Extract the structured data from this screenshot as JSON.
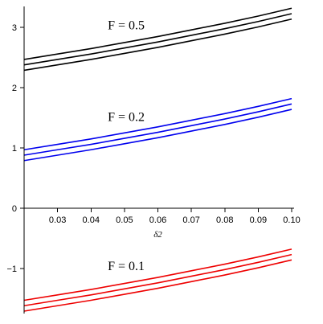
{
  "chart_data": {
    "type": "line",
    "xlabel": "δ2",
    "ylabel": "",
    "xlim": [
      0.02,
      0.1
    ],
    "ylim": [
      -1.75,
      3.35
    ],
    "x_ticks": [
      0.03,
      0.04,
      0.05,
      0.06,
      0.07,
      0.08,
      0.09,
      0.1
    ],
    "x_tick_labels": [
      "0.03",
      "0.04",
      "0.05",
      "0.06",
      "0.07",
      "0.08",
      "0.09",
      "0.10"
    ],
    "y_ticks": [
      -1,
      0,
      1,
      2,
      3
    ],
    "y_tick_labels": [
      "−1",
      "0",
      "1",
      "2",
      "3"
    ],
    "grid": false,
    "annotations": [
      {
        "text": "F = 0.5",
        "x": 0.045,
        "y": 2.97,
        "color": "#000000"
      },
      {
        "text": "F = 0.2",
        "x": 0.045,
        "y": 1.45,
        "color": "#000000"
      },
      {
        "text": "F = 0.1",
        "x": 0.045,
        "y": -1.03,
        "color": "#000000"
      }
    ],
    "series": [
      {
        "group": "F = 0.5",
        "color": "#000000",
        "x": [
          0.02,
          0.03,
          0.04,
          0.05,
          0.06,
          0.07,
          0.08,
          0.09,
          0.1
        ],
        "values": [
          2.47,
          2.56,
          2.65,
          2.75,
          2.85,
          2.96,
          3.07,
          3.19,
          3.32
        ]
      },
      {
        "group": "F = 0.5",
        "color": "#000000",
        "x": [
          0.02,
          0.03,
          0.04,
          0.05,
          0.06,
          0.07,
          0.08,
          0.09,
          0.1
        ],
        "values": [
          2.38,
          2.47,
          2.56,
          2.66,
          2.76,
          2.87,
          2.98,
          3.1,
          3.23
        ]
      },
      {
        "group": "F = 0.5",
        "color": "#000000",
        "x": [
          0.02,
          0.03,
          0.04,
          0.05,
          0.06,
          0.07,
          0.08,
          0.09,
          0.1
        ],
        "values": [
          2.29,
          2.38,
          2.47,
          2.57,
          2.67,
          2.78,
          2.89,
          3.01,
          3.14
        ]
      },
      {
        "group": "F = 0.2",
        "color": "#0000ee",
        "x": [
          0.02,
          0.03,
          0.04,
          0.05,
          0.06,
          0.07,
          0.08,
          0.09,
          0.1
        ],
        "values": [
          0.97,
          1.06,
          1.15,
          1.25,
          1.35,
          1.46,
          1.57,
          1.69,
          1.82
        ]
      },
      {
        "group": "F = 0.2",
        "color": "#0000ee",
        "x": [
          0.02,
          0.03,
          0.04,
          0.05,
          0.06,
          0.07,
          0.08,
          0.09,
          0.1
        ],
        "values": [
          0.88,
          0.97,
          1.06,
          1.16,
          1.26,
          1.37,
          1.48,
          1.6,
          1.73
        ]
      },
      {
        "group": "F = 0.2",
        "color": "#0000ee",
        "x": [
          0.02,
          0.03,
          0.04,
          0.05,
          0.06,
          0.07,
          0.08,
          0.09,
          0.1
        ],
        "values": [
          0.79,
          0.88,
          0.97,
          1.07,
          1.17,
          1.28,
          1.39,
          1.51,
          1.64
        ]
      },
      {
        "group": "F = 0.1",
        "color": "#ee0000",
        "x": [
          0.02,
          0.03,
          0.04,
          0.05,
          0.06,
          0.07,
          0.08,
          0.09,
          0.1
        ],
        "values": [
          -1.53,
          -1.44,
          -1.35,
          -1.25,
          -1.15,
          -1.04,
          -0.93,
          -0.81,
          -0.68
        ]
      },
      {
        "group": "F = 0.1",
        "color": "#ee0000",
        "x": [
          0.02,
          0.03,
          0.04,
          0.05,
          0.06,
          0.07,
          0.08,
          0.09,
          0.1
        ],
        "values": [
          -1.62,
          -1.53,
          -1.44,
          -1.34,
          -1.24,
          -1.13,
          -1.02,
          -0.9,
          -0.77
        ]
      },
      {
        "group": "F = 0.1",
        "color": "#ee0000",
        "x": [
          0.02,
          0.03,
          0.04,
          0.05,
          0.06,
          0.07,
          0.08,
          0.09,
          0.1
        ],
        "values": [
          -1.71,
          -1.62,
          -1.53,
          -1.43,
          -1.33,
          -1.22,
          -1.11,
          -0.99,
          -0.86
        ]
      }
    ]
  }
}
